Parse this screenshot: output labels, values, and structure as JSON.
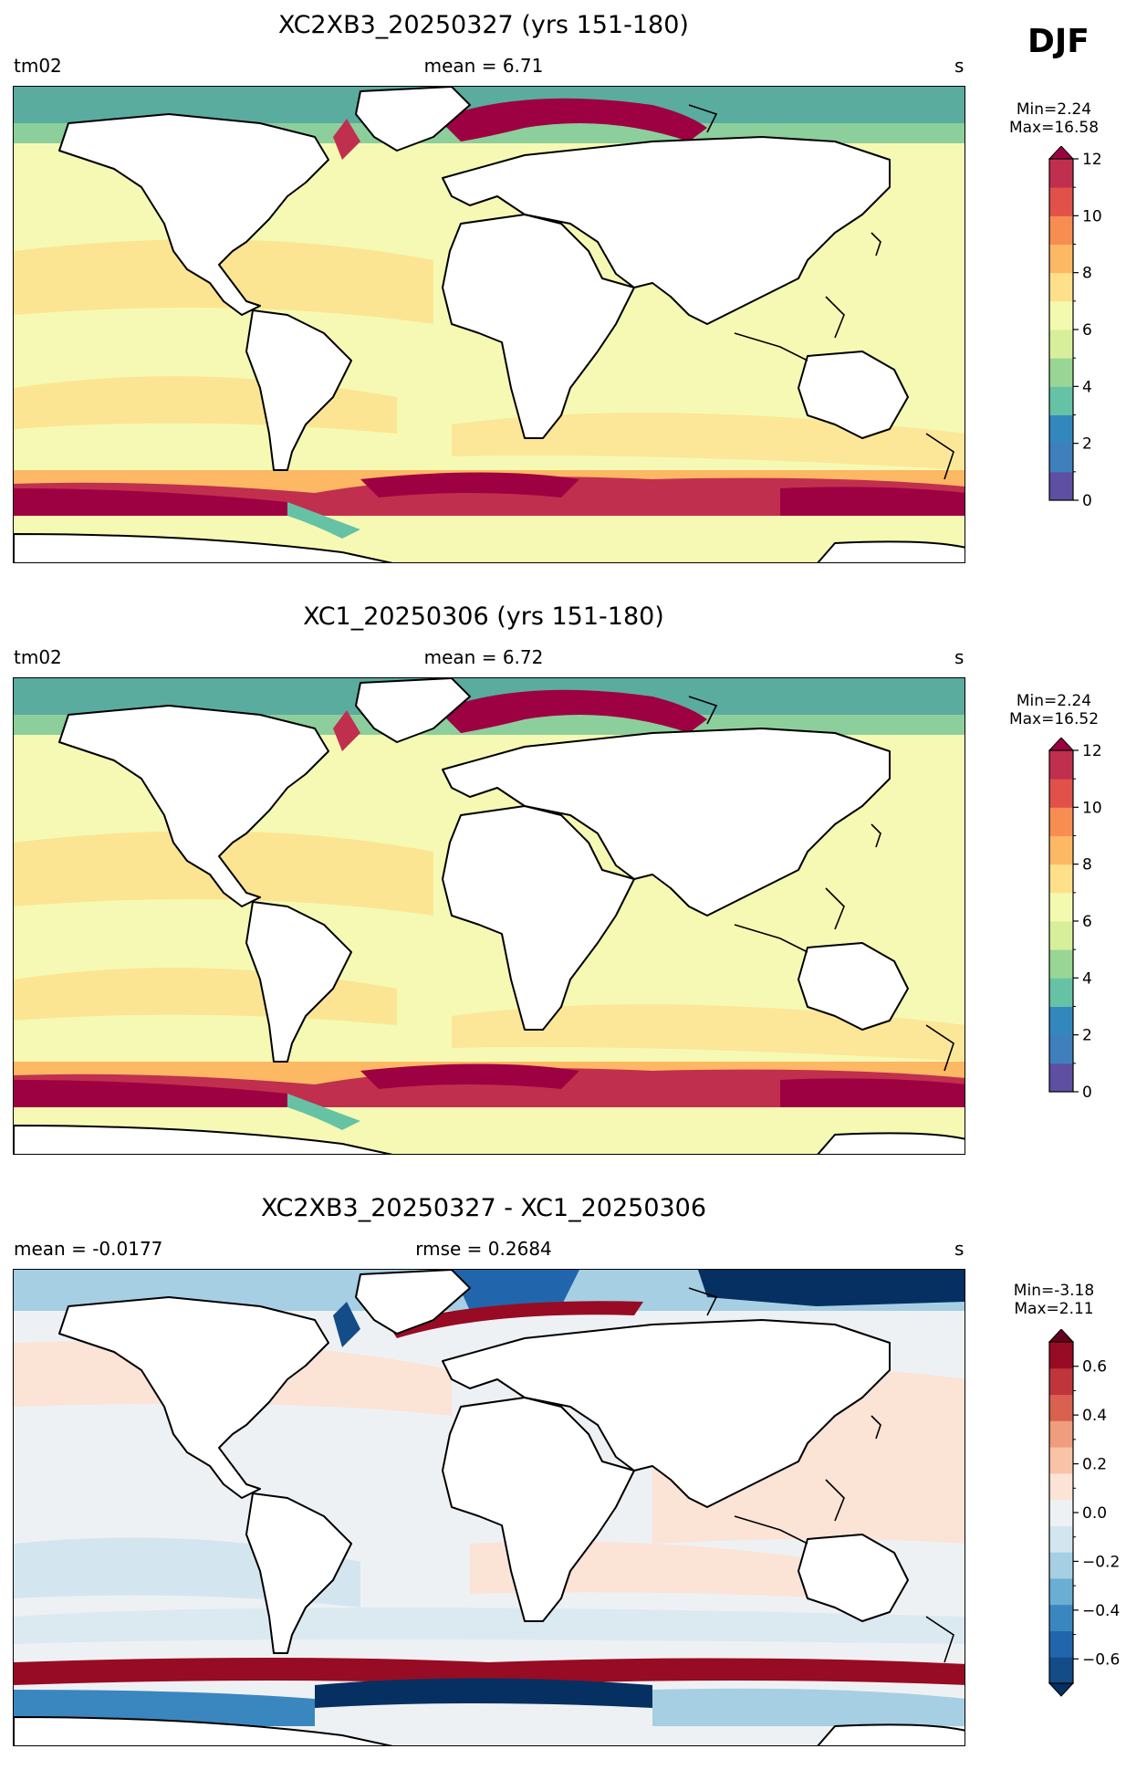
{
  "season": "DJF",
  "panels": [
    {
      "title": "XC2XB3_20250327 (yrs 151-180)",
      "left": "tm02",
      "center": "mean = 6.71",
      "right": "s",
      "minmax": [
        "Min=2.24",
        "Max=16.58"
      ],
      "colorbar": {
        "ticks": [
          "0",
          "2",
          "4",
          "6",
          "8",
          "10",
          "12"
        ],
        "range": [
          0,
          12
        ],
        "levels": 12,
        "extend": "max",
        "colors": [
          "#5e4fa2",
          "#3f7fbb",
          "#3288bd",
          "#66c2a5",
          "#99d594",
          "#d7ef9b",
          "#f3fab0",
          "#fee08b",
          "#fdb863",
          "#f88d52",
          "#e1514a",
          "#c12f4e",
          "#9e0142"
        ]
      }
    },
    {
      "title": "XC1_20250306 (yrs 151-180)",
      "left": "tm02",
      "center": "mean = 6.72",
      "right": "s",
      "minmax": [
        "Min=2.24",
        "Max=16.52"
      ],
      "colorbar": {
        "ticks": [
          "0",
          "2",
          "4",
          "6",
          "8",
          "10",
          "12"
        ],
        "range": [
          0,
          12
        ],
        "levels": 12,
        "extend": "max",
        "colors": [
          "#5e4fa2",
          "#3f7fbb",
          "#3288bd",
          "#66c2a5",
          "#99d594",
          "#d7ef9b",
          "#f3fab0",
          "#fee08b",
          "#fdb863",
          "#f88d52",
          "#e1514a",
          "#c12f4e",
          "#9e0142"
        ]
      }
    },
    {
      "title": "XC2XB3_20250327 - XC1_20250306",
      "left": "mean = -0.0177",
      "center": "rmse = 0.2684",
      "right": "s",
      "minmax": [
        "Min=-3.18",
        "Max=2.11"
      ],
      "colorbar": {
        "ticks": [
          "−0.6",
          "−0.4",
          "−0.2",
          "0.0",
          "0.2",
          "0.4",
          "0.6"
        ],
        "range": [
          -0.7,
          0.7
        ],
        "levels": 14,
        "extend": "both",
        "colors": [
          "#053061",
          "#134c87",
          "#2166ac",
          "#3a87c0",
          "#6aaed3",
          "#a6cfe4",
          "#d3e6f0",
          "#eef1f4",
          "#fbe3d6",
          "#f9c3a8",
          "#ef9d7e",
          "#d8614f",
          "#c0353c",
          "#980b24",
          "#67001f"
        ]
      }
    }
  ]
}
